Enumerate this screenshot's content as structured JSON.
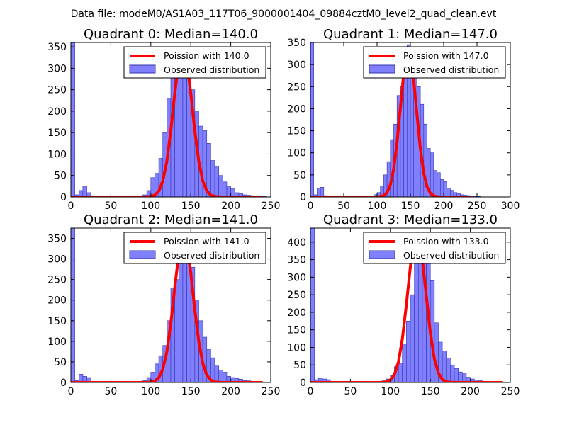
{
  "figure_title": "Data file: modeM0/AS1A03_117T06_9000001404_09884cztM0_level2_quad_clean.evt",
  "colors": {
    "bar_fill": "#8080ff",
    "bar_edge": "#3333aa",
    "poisson_line": "#ff0000",
    "axis": "#000000"
  },
  "chart_data": [
    {
      "type": "bar",
      "title": "Quadrant 0: Median=140.0",
      "xlim": [
        0,
        250
      ],
      "ylim": [
        0,
        360
      ],
      "xticks": [
        0,
        50,
        100,
        150,
        200,
        250
      ],
      "yticks": [
        0,
        50,
        100,
        150,
        200,
        250,
        300,
        350
      ],
      "bin_width": 5,
      "bin_starts": [
        0,
        5,
        10,
        15,
        20,
        25,
        30,
        35,
        40,
        45,
        50,
        55,
        60,
        65,
        70,
        75,
        80,
        85,
        90,
        95,
        100,
        105,
        110,
        115,
        120,
        125,
        130,
        135,
        140,
        145,
        150,
        155,
        160,
        165,
        170,
        175,
        180,
        185,
        190,
        195,
        200,
        205,
        210,
        215,
        220,
        225,
        230,
        235,
        240
      ],
      "bin_counts": [
        360,
        5,
        15,
        25,
        10,
        3,
        2,
        1,
        1,
        1,
        1,
        1,
        1,
        1,
        1,
        1,
        1,
        2,
        5,
        15,
        45,
        55,
        90,
        150,
        230,
        300,
        345,
        345,
        310,
        290,
        250,
        200,
        165,
        155,
        125,
        85,
        70,
        50,
        35,
        25,
        20,
        10,
        8,
        5,
        4,
        3,
        2,
        1,
        1
      ],
      "poisson": {
        "mean": 140.0,
        "label": "Poission with 140.0",
        "peak": 345
      },
      "legend": [
        "Poission with 140.0",
        "Observed distribution"
      ]
    },
    {
      "type": "bar",
      "title": "Quadrant 1: Median=147.0",
      "xlim": [
        0,
        300
      ],
      "ylim": [
        0,
        350
      ],
      "xticks": [
        0,
        50,
        100,
        150,
        200,
        250,
        300
      ],
      "yticks": [
        0,
        50,
        100,
        150,
        200,
        250,
        300,
        350
      ],
      "bin_width": 5,
      "bin_starts": [
        0,
        5,
        10,
        15,
        20,
        25,
        30,
        35,
        40,
        45,
        50,
        55,
        60,
        65,
        70,
        75,
        80,
        85,
        90,
        95,
        100,
        105,
        110,
        115,
        120,
        125,
        130,
        135,
        140,
        145,
        150,
        155,
        160,
        165,
        170,
        175,
        180,
        185,
        190,
        195,
        200,
        205,
        210,
        215,
        220,
        225,
        230,
        235,
        240,
        245,
        250
      ],
      "bin_counts": [
        350,
        5,
        20,
        22,
        3,
        1,
        1,
        1,
        1,
        1,
        1,
        1,
        1,
        1,
        1,
        1,
        1,
        1,
        2,
        5,
        10,
        25,
        50,
        80,
        130,
        165,
        230,
        250,
        300,
        345,
        340,
        290,
        250,
        210,
        165,
        110,
        100,
        60,
        55,
        40,
        35,
        20,
        15,
        10,
        8,
        5,
        4,
        3,
        2,
        1,
        1
      ],
      "poisson": {
        "mean": 147.0,
        "label": "Poission with 147.0",
        "peak": 330
      },
      "legend": [
        "Poission with 147.0",
        "Observed distribution"
      ]
    },
    {
      "type": "bar",
      "title": "Quadrant 2: Median=141.0",
      "xlim": [
        0,
        250
      ],
      "ylim": [
        0,
        375
      ],
      "xticks": [
        0,
        50,
        100,
        150,
        200,
        250
      ],
      "yticks": [
        0,
        50,
        100,
        150,
        200,
        250,
        300,
        350
      ],
      "bin_width": 5,
      "bin_starts": [
        0,
        5,
        10,
        15,
        20,
        25,
        30,
        35,
        40,
        45,
        50,
        55,
        60,
        65,
        70,
        75,
        80,
        85,
        90,
        95,
        100,
        105,
        110,
        115,
        120,
        125,
        130,
        135,
        140,
        145,
        150,
        155,
        160,
        165,
        170,
        175,
        180,
        185,
        190,
        195,
        200,
        205,
        210,
        215,
        220,
        225,
        230,
        235
      ],
      "bin_counts": [
        375,
        5,
        20,
        15,
        12,
        3,
        2,
        1,
        1,
        1,
        1,
        1,
        1,
        1,
        1,
        1,
        1,
        2,
        5,
        12,
        25,
        45,
        65,
        90,
        150,
        230,
        250,
        290,
        350,
        310,
        280,
        200,
        150,
        110,
        80,
        60,
        40,
        30,
        25,
        15,
        12,
        10,
        8,
        5,
        4,
        3,
        2,
        1
      ],
      "poisson": {
        "mean": 141.0,
        "label": "Poission with 141.0",
        "peak": 355
      },
      "legend": [
        "Poission with 141.0",
        "Observed distribution"
      ]
    },
    {
      "type": "bar",
      "title": "Quadrant 3: Median=133.0",
      "xlim": [
        0,
        250
      ],
      "ylim": [
        0,
        440
      ],
      "xticks": [
        0,
        50,
        100,
        150,
        200,
        250
      ],
      "yticks": [
        0,
        50,
        100,
        150,
        200,
        250,
        300,
        350,
        400
      ],
      "bin_width": 5,
      "bin_starts": [
        0,
        5,
        10,
        15,
        20,
        25,
        30,
        35,
        40,
        45,
        50,
        55,
        60,
        65,
        70,
        75,
        80,
        85,
        90,
        95,
        100,
        105,
        110,
        115,
        120,
        125,
        130,
        135,
        140,
        145,
        150,
        155,
        160,
        165,
        170,
        175,
        180,
        185,
        190,
        195,
        200,
        205,
        210,
        215,
        220
      ],
      "bin_counts": [
        440,
        8,
        12,
        10,
        8,
        3,
        2,
        1,
        1,
        1,
        1,
        1,
        1,
        1,
        1,
        1,
        2,
        3,
        5,
        10,
        20,
        45,
        55,
        110,
        175,
        250,
        350,
        380,
        400,
        370,
        290,
        170,
        115,
        90,
        70,
        50,
        40,
        30,
        25,
        15,
        10,
        7,
        5,
        3,
        1
      ],
      "poisson": {
        "mean": 133.0,
        "label": "Poission with 133.0",
        "peak": 420
      },
      "legend": [
        "Poission with 133.0",
        "Observed distribution"
      ]
    }
  ]
}
